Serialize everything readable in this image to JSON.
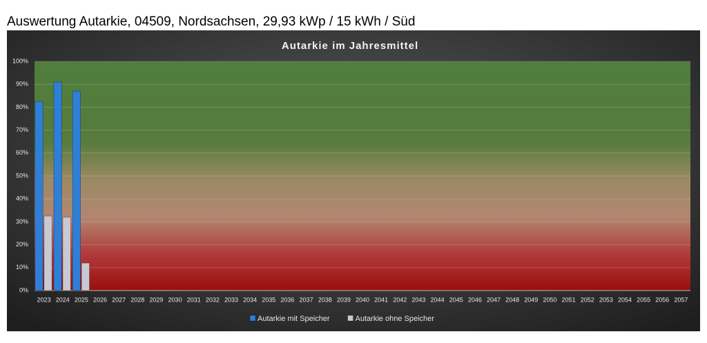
{
  "header": {
    "title": "Auswertung Autarkie, 04509, Nordsachsen, 29,93 kWp / 15 kWh / Süd"
  },
  "chart_data": {
    "type": "bar",
    "title": "Autarkie im Jahresmittel",
    "categories": [
      "2023",
      "2024",
      "2025",
      "2026",
      "2027",
      "2028",
      "2029",
      "2030",
      "2031",
      "2032",
      "2033",
      "2034",
      "2035",
      "2036",
      "2037",
      "2038",
      "2039",
      "2040",
      "2041",
      "2042",
      "2043",
      "2044",
      "2045",
      "2046",
      "2047",
      "2048",
      "2049",
      "2050",
      "2051",
      "2052",
      "2053",
      "2054",
      "2055",
      "2056",
      "2057"
    ],
    "series": [
      {
        "name": "Autarkie mit Speicher",
        "color": "#2e7fd8",
        "values": [
          82.5,
          91,
          87,
          null,
          null,
          null,
          null,
          null,
          null,
          null,
          null,
          null,
          null,
          null,
          null,
          null,
          null,
          null,
          null,
          null,
          null,
          null,
          null,
          null,
          null,
          null,
          null,
          null,
          null,
          null,
          null,
          null,
          null,
          null,
          null
        ]
      },
      {
        "name": "Autarkie ohne Speicher",
        "color": "#c9c9d2",
        "values": [
          32.5,
          32,
          12,
          null,
          null,
          null,
          null,
          null,
          null,
          null,
          null,
          null,
          null,
          null,
          null,
          null,
          null,
          null,
          null,
          null,
          null,
          null,
          null,
          null,
          null,
          null,
          null,
          null,
          null,
          null,
          null,
          null,
          null,
          null,
          null
        ]
      }
    ],
    "ylim": [
      0,
      100
    ],
    "yticks": [
      {
        "value": 0,
        "label": "0%"
      },
      {
        "value": 10,
        "label": "10%"
      },
      {
        "value": 20,
        "label": "20%"
      },
      {
        "value": 30,
        "label": "30%"
      },
      {
        "value": 40,
        "label": "40%"
      },
      {
        "value": 50,
        "label": "50%"
      },
      {
        "value": 60,
        "label": "60%"
      },
      {
        "value": 70,
        "label": "70%"
      },
      {
        "value": 80,
        "label": "80%"
      },
      {
        "value": 90,
        "label": "90%"
      },
      {
        "value": 100,
        "label": "100%"
      }
    ],
    "grid": true,
    "legend": "bottom"
  }
}
